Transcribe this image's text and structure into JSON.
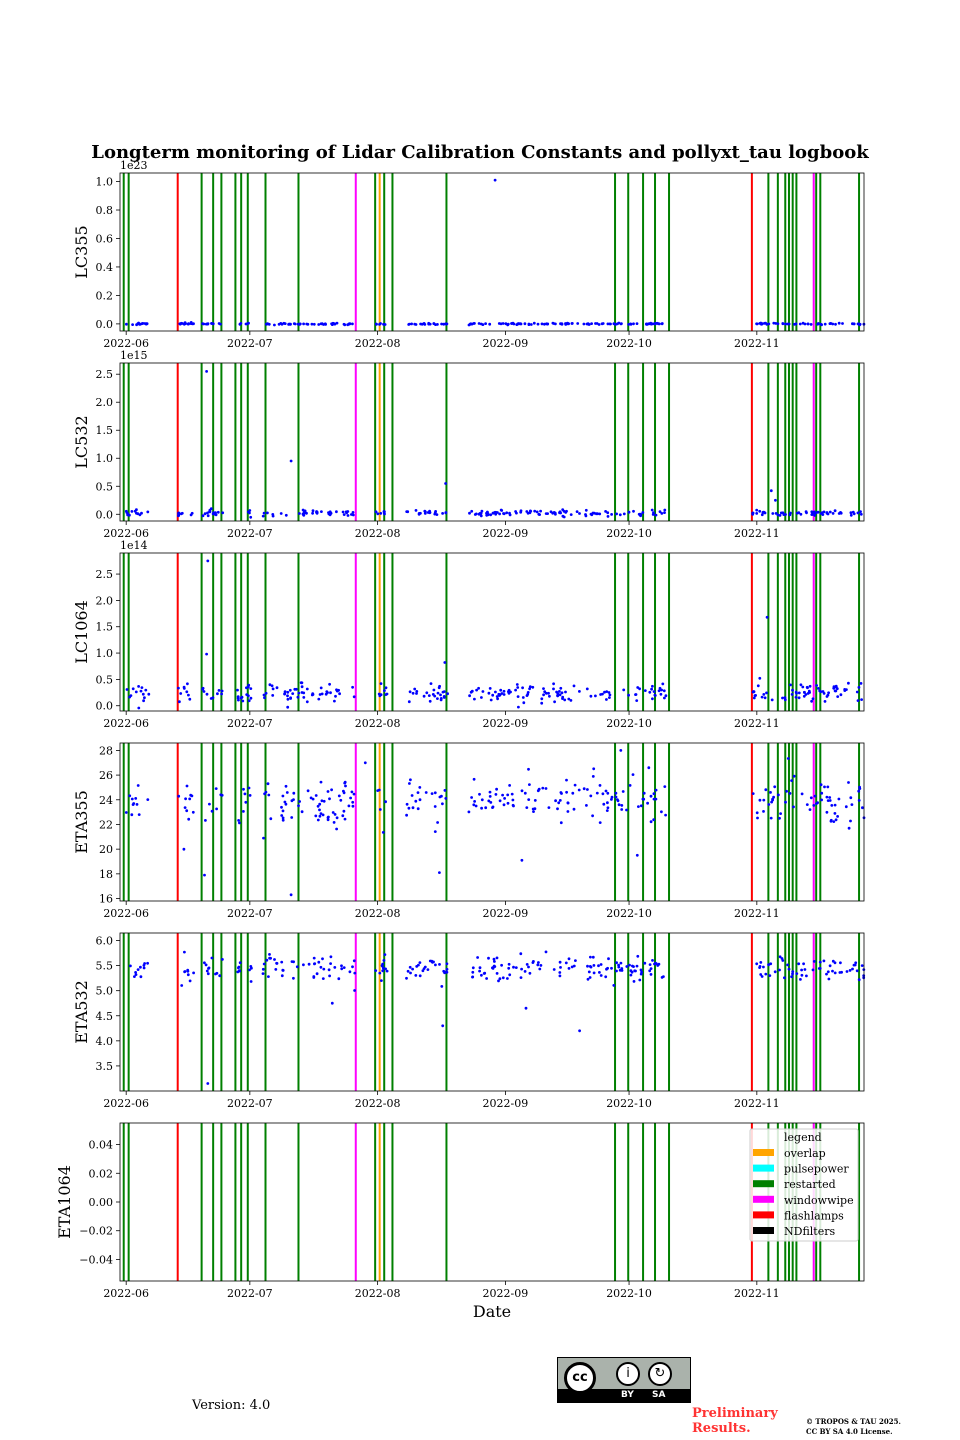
{
  "chart_data": {
    "type": "scatter",
    "title": "Longterm monitoring of Lidar Calibration Constants and pollyxt_tau logbook",
    "xlabel": "Date",
    "x_domain_days": [
      -1.5,
      179
    ],
    "x_ticks": [
      {
        "day": 0,
        "label": "2022-06"
      },
      {
        "day": 30,
        "label": "2022-07"
      },
      {
        "day": 61,
        "label": "2022-08"
      },
      {
        "day": 92,
        "label": "2022-09"
      },
      {
        "day": 122,
        "label": "2022-10"
      },
      {
        "day": 153,
        "label": "2022-11"
      }
    ],
    "event_colors": {
      "overlap": "#ffa500",
      "pulsepower": "#00ffff",
      "restarted": "#008000",
      "windowwipe": "#ff00ff",
      "flashlamps": "#ff0000",
      "NDfilters": "#000000"
    },
    "events": [
      {
        "day": -0.6,
        "type": "restarted"
      },
      {
        "day": 0.6,
        "type": "restarted"
      },
      {
        "day": 12.5,
        "type": "flashlamps"
      },
      {
        "day": 18.3,
        "type": "restarted"
      },
      {
        "day": 21.1,
        "type": "restarted"
      },
      {
        "day": 23.1,
        "type": "restarted"
      },
      {
        "day": 26.5,
        "type": "restarted"
      },
      {
        "day": 27.9,
        "type": "restarted"
      },
      {
        "day": 29.5,
        "type": "restarted"
      },
      {
        "day": 33.8,
        "type": "restarted"
      },
      {
        "day": 41.8,
        "type": "restarted"
      },
      {
        "day": 55.7,
        "type": "windowwipe"
      },
      {
        "day": 60.4,
        "type": "restarted"
      },
      {
        "day": 61.5,
        "type": "overlap"
      },
      {
        "day": 62.6,
        "type": "restarted"
      },
      {
        "day": 64.6,
        "type": "restarted"
      },
      {
        "day": 77.7,
        "type": "restarted"
      },
      {
        "day": 118.6,
        "type": "restarted"
      },
      {
        "day": 121.8,
        "type": "restarted"
      },
      {
        "day": 125.4,
        "type": "restarted"
      },
      {
        "day": 128.3,
        "type": "restarted"
      },
      {
        "day": 131.7,
        "type": "restarted"
      },
      {
        "day": 151.8,
        "type": "flashlamps"
      },
      {
        "day": 155.8,
        "type": "restarted"
      },
      {
        "day": 158.1,
        "type": "restarted"
      },
      {
        "day": 159.9,
        "type": "restarted"
      },
      {
        "day": 160.8,
        "type": "restarted"
      },
      {
        "day": 161.7,
        "type": "restarted"
      },
      {
        "day": 162.6,
        "type": "restarted"
      },
      {
        "day": 166.8,
        "type": "windowwipe"
      },
      {
        "day": 167.4,
        "type": "restarted"
      },
      {
        "day": 168.4,
        "type": "restarted"
      },
      {
        "day": 177.8,
        "type": "restarted"
      }
    ],
    "data_segments": [
      [
        0,
        5.5
      ],
      [
        12.5,
        16.5
      ],
      [
        18.5,
        23.5
      ],
      [
        27,
        30.5
      ],
      [
        33,
        55.5
      ],
      [
        60.5,
        63.5
      ],
      [
        68,
        78
      ],
      [
        83,
        110
      ],
      [
        111,
        131
      ],
      [
        152,
        179
      ]
    ],
    "panels": [
      {
        "ylabel": "LC355",
        "ylim": [
          -0.05,
          1.06
        ],
        "yticks": [
          0.0,
          0.2,
          0.4,
          0.6,
          0.8,
          1.0
        ],
        "tick_labels": [
          "0.0",
          "0.2",
          "0.4",
          "0.6",
          "0.8",
          "1.0"
        ],
        "offset_label": "1e23",
        "base": 0.0,
        "noise": 0.003,
        "n": 260,
        "seed": 11,
        "outliers": [
          {
            "day": 89.5,
            "value": 1.01
          }
        ]
      },
      {
        "ylabel": "LC532",
        "ylim": [
          -0.12,
          2.7
        ],
        "yticks": [
          0.0,
          0.5,
          1.0,
          1.5,
          2.0,
          2.5
        ],
        "tick_labels": [
          "0.0",
          "0.5",
          "1.0",
          "1.5",
          "2.0",
          "2.5"
        ],
        "offset_label": "1e15",
        "base": 0.02,
        "noise": 0.025,
        "n": 260,
        "seed": 22,
        "outliers": [
          {
            "day": 19.5,
            "value": 2.55
          },
          {
            "day": 40,
            "value": 0.95
          },
          {
            "day": 77.5,
            "value": 0.55
          },
          {
            "day": 156.5,
            "value": 0.42
          },
          {
            "day": 157.5,
            "value": 0.25
          }
        ]
      },
      {
        "ylabel": "LC1064",
        "ylim": [
          -0.1,
          2.9
        ],
        "yticks": [
          0.0,
          0.5,
          1.0,
          1.5,
          2.0,
          2.5
        ],
        "tick_labels": [
          "0.0",
          "0.5",
          "1.0",
          "1.5",
          "2.0",
          "2.5"
        ],
        "offset_label": "1e14",
        "base": 0.25,
        "noise": 0.09,
        "n": 300,
        "seed": 33,
        "outliers": [
          {
            "day": 19.8,
            "value": 2.75
          },
          {
            "day": 19.5,
            "value": 0.98
          },
          {
            "day": 155.5,
            "value": 1.68
          },
          {
            "day": 77.3,
            "value": 0.82
          }
        ]
      },
      {
        "ylabel": "ETA355",
        "ylim": [
          15.8,
          28.6
        ],
        "yticks": [
          16,
          18,
          20,
          22,
          24,
          26,
          28
        ],
        "tick_labels": [
          "16",
          "18",
          "20",
          "22",
          "24",
          "26",
          "28"
        ],
        "offset_label": "",
        "base": 23.9,
        "noise": 1.0,
        "n": 300,
        "seed": 44,
        "outliers": [
          {
            "day": 14,
            "value": 20.0
          },
          {
            "day": 19,
            "value": 17.9
          },
          {
            "day": 40,
            "value": 16.3
          },
          {
            "day": 76,
            "value": 18.1
          },
          {
            "day": 96,
            "value": 19.1
          },
          {
            "day": 120,
            "value": 28.0
          },
          {
            "day": 124,
            "value": 19.5
          },
          {
            "day": 58,
            "value": 27.0
          }
        ]
      },
      {
        "ylabel": "ETA532",
        "ylim": [
          3.0,
          6.15
        ],
        "yticks": [
          3.5,
          4.0,
          4.5,
          5.0,
          5.5,
          6.0
        ],
        "tick_labels": [
          "3.5",
          "4.0",
          "4.5",
          "5.0",
          "5.5",
          "6.0"
        ],
        "offset_label": "",
        "base": 5.45,
        "noise": 0.13,
        "n": 300,
        "seed": 55,
        "outliers": [
          {
            "day": 19.8,
            "value": 3.15
          },
          {
            "day": 76.8,
            "value": 4.3
          },
          {
            "day": 110,
            "value": 4.2
          },
          {
            "day": 97,
            "value": 4.65
          },
          {
            "day": 50,
            "value": 4.75
          }
        ]
      },
      {
        "ylabel": "ETA1064",
        "ylim": [
          -0.055,
          0.055
        ],
        "yticks": [
          -0.04,
          -0.02,
          0.0,
          0.02,
          0.04
        ],
        "tick_labels": [
          "−0.04",
          "−0.02",
          "0.00",
          "0.02",
          "0.04"
        ],
        "offset_label": "",
        "base": null,
        "n": 0,
        "outliers": []
      }
    ],
    "legend": {
      "title": "legend",
      "position": "top-right",
      "entries": [
        {
          "label": "overlap",
          "color": "#ffa500"
        },
        {
          "label": "pulsepower",
          "color": "#00ffff"
        },
        {
          "label": "restarted",
          "color": "#008000"
        },
        {
          "label": "windowwipe",
          "color": "#ff00ff"
        },
        {
          "label": "flashlamps",
          "color": "#ff0000"
        },
        {
          "label": "NDfilters",
          "color": "#000000"
        }
      ]
    },
    "point_color": "#0000ff"
  },
  "footer": {
    "version": "Version: 4.0",
    "cc_by": "BY",
    "cc_sa": "SA",
    "cc_mark": "cc",
    "preliminary_line1": "Preliminary",
    "preliminary_line2": "Results.",
    "copyright_line1": "© TROPOS & TAU 2025.",
    "copyright_line2": "CC BY SA 4.0 License."
  }
}
